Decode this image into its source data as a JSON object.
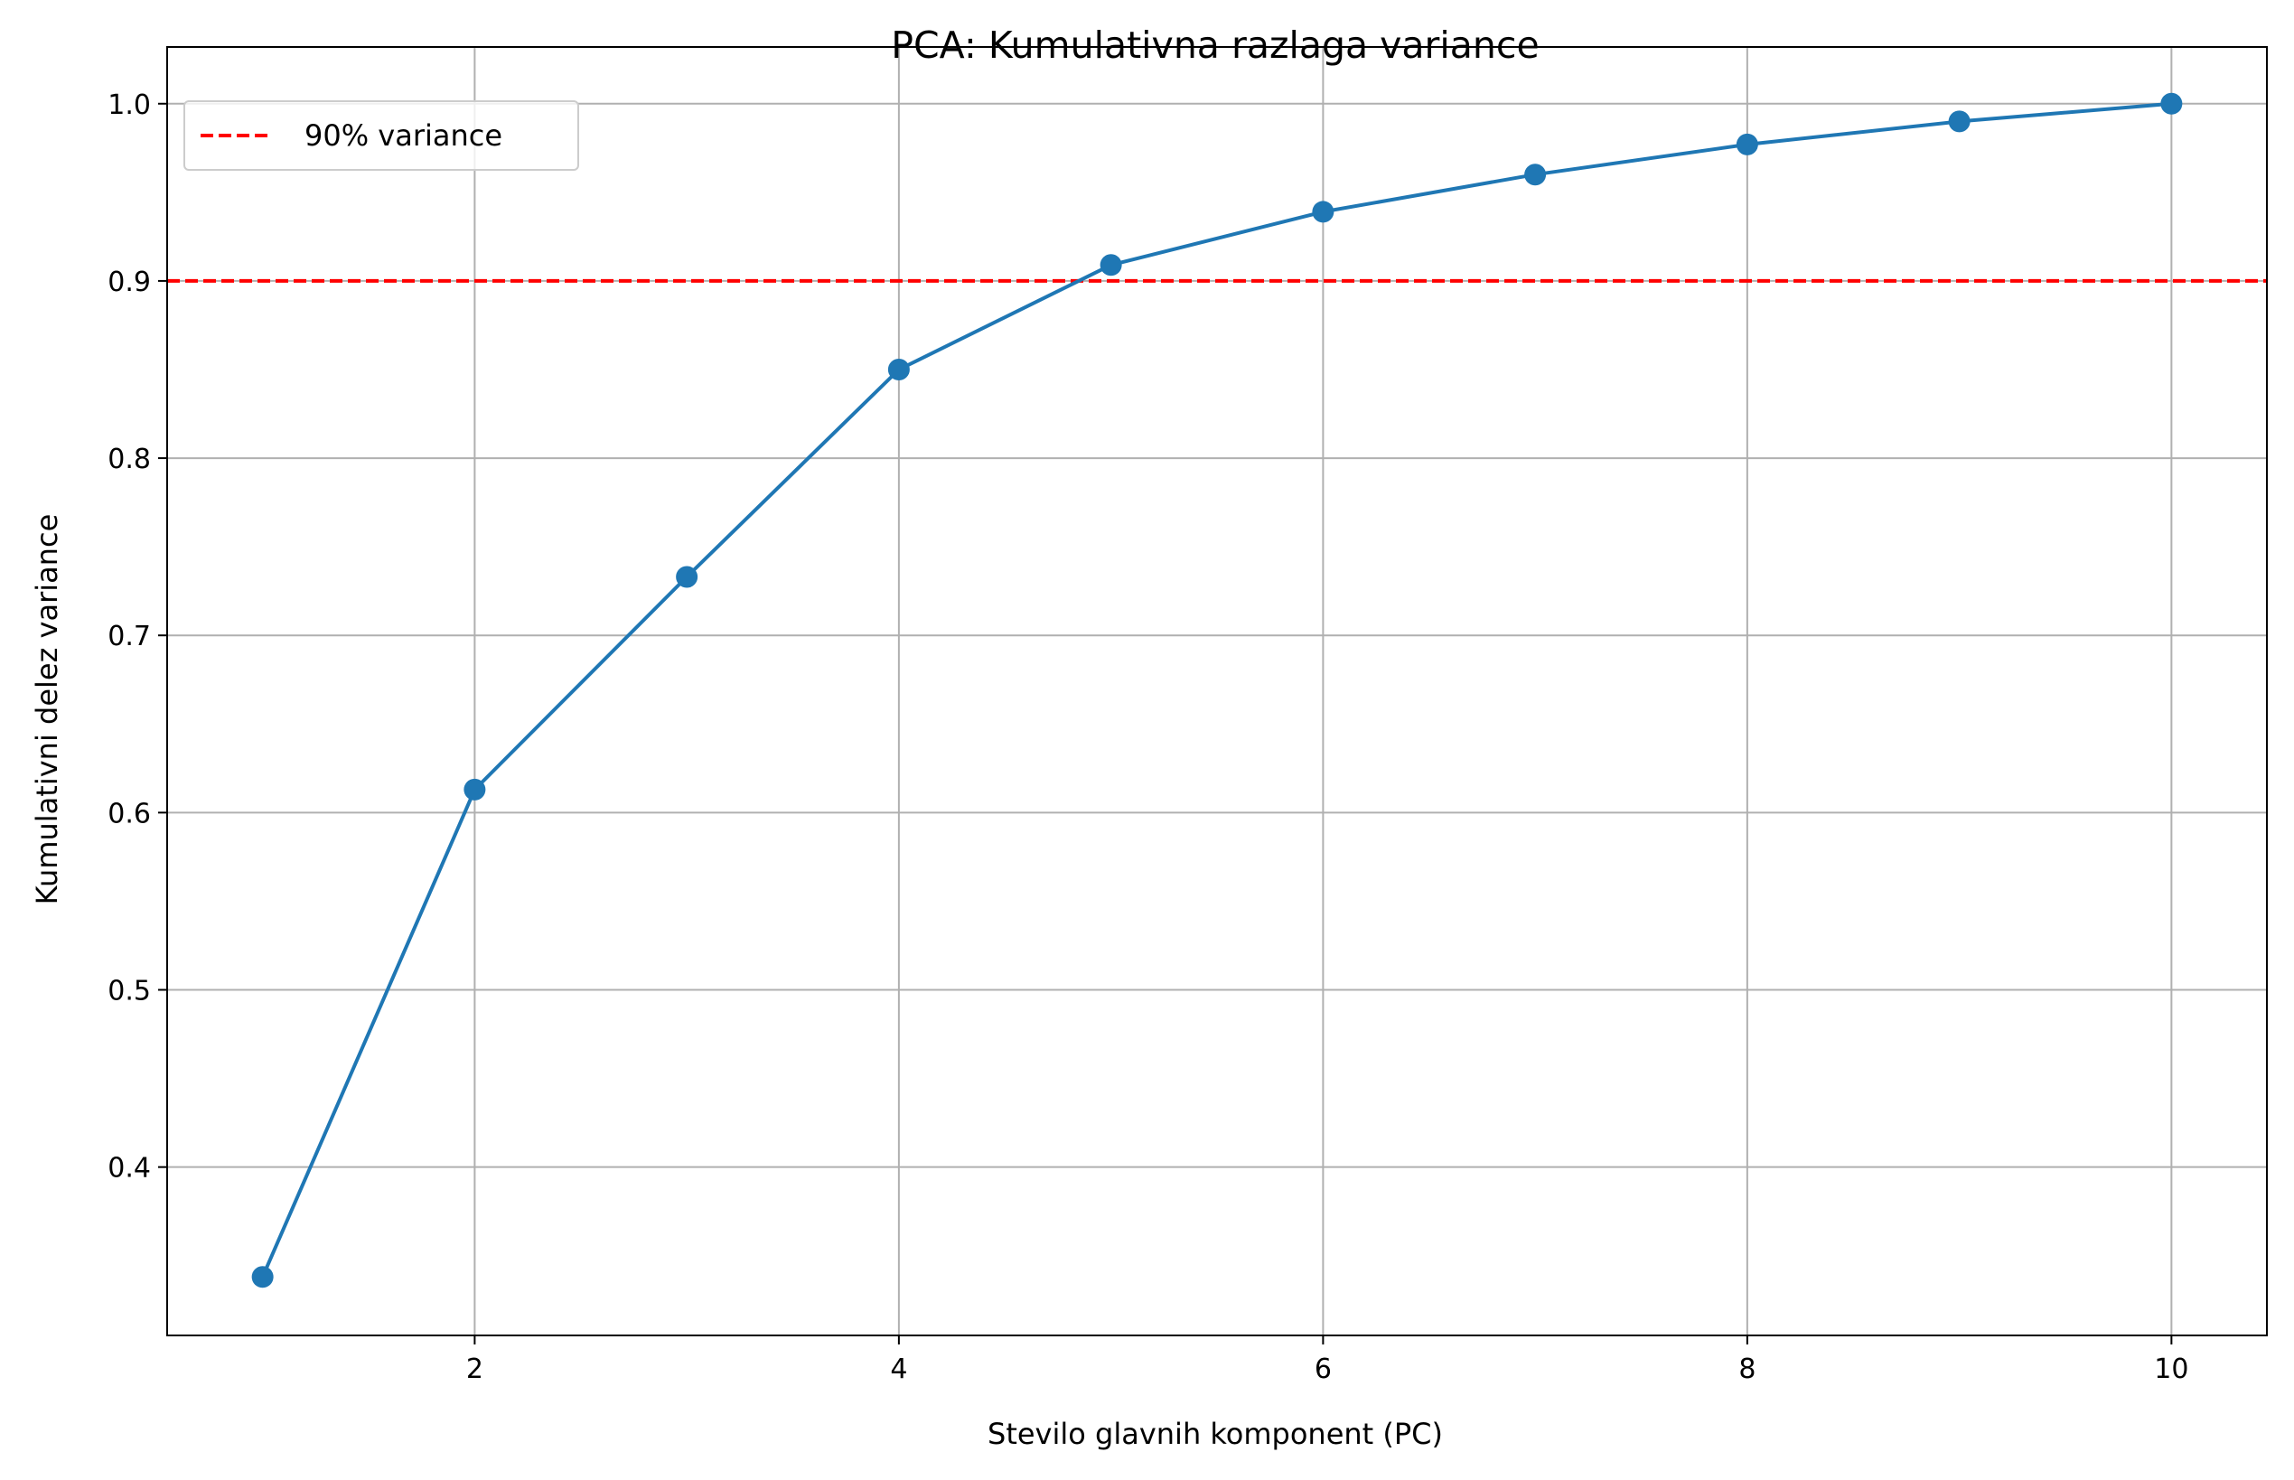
{
  "chart_data": {
    "type": "line",
    "title": "PCA: Kumulativna razlaga variance",
    "xlabel": "Stevilo glavnih komponent (PC)",
    "ylabel": "Kumulativni delez variance",
    "xlim": [
      0.55,
      10.45
    ],
    "ylim": [
      0.305,
      1.032
    ],
    "xticks": [
      2,
      4,
      6,
      8,
      10
    ],
    "yticks": [
      0.4,
      0.5,
      0.6,
      0.7,
      0.8,
      0.9,
      1.0
    ],
    "xtick_labels": [
      "2",
      "4",
      "6",
      "8",
      "10"
    ],
    "ytick_labels": [
      "0.4",
      "0.5",
      "0.6",
      "0.7",
      "0.8",
      "0.9",
      "1.0"
    ],
    "grid": true,
    "legend_position": "top-left",
    "series": [
      {
        "x": [
          1,
          2,
          3,
          4,
          5,
          6,
          7,
          8,
          9,
          10
        ],
        "y": [
          0.338,
          0.613,
          0.733,
          0.85,
          0.909,
          0.939,
          0.96,
          0.977,
          0.99,
          1.0
        ],
        "color": "#1f77b4",
        "marker": "circle"
      }
    ],
    "reference_lines": [
      {
        "orientation": "horizontal",
        "y": 0.9,
        "name": "90% variance",
        "color": "#ff0000",
        "style": "dashed"
      }
    ]
  }
}
